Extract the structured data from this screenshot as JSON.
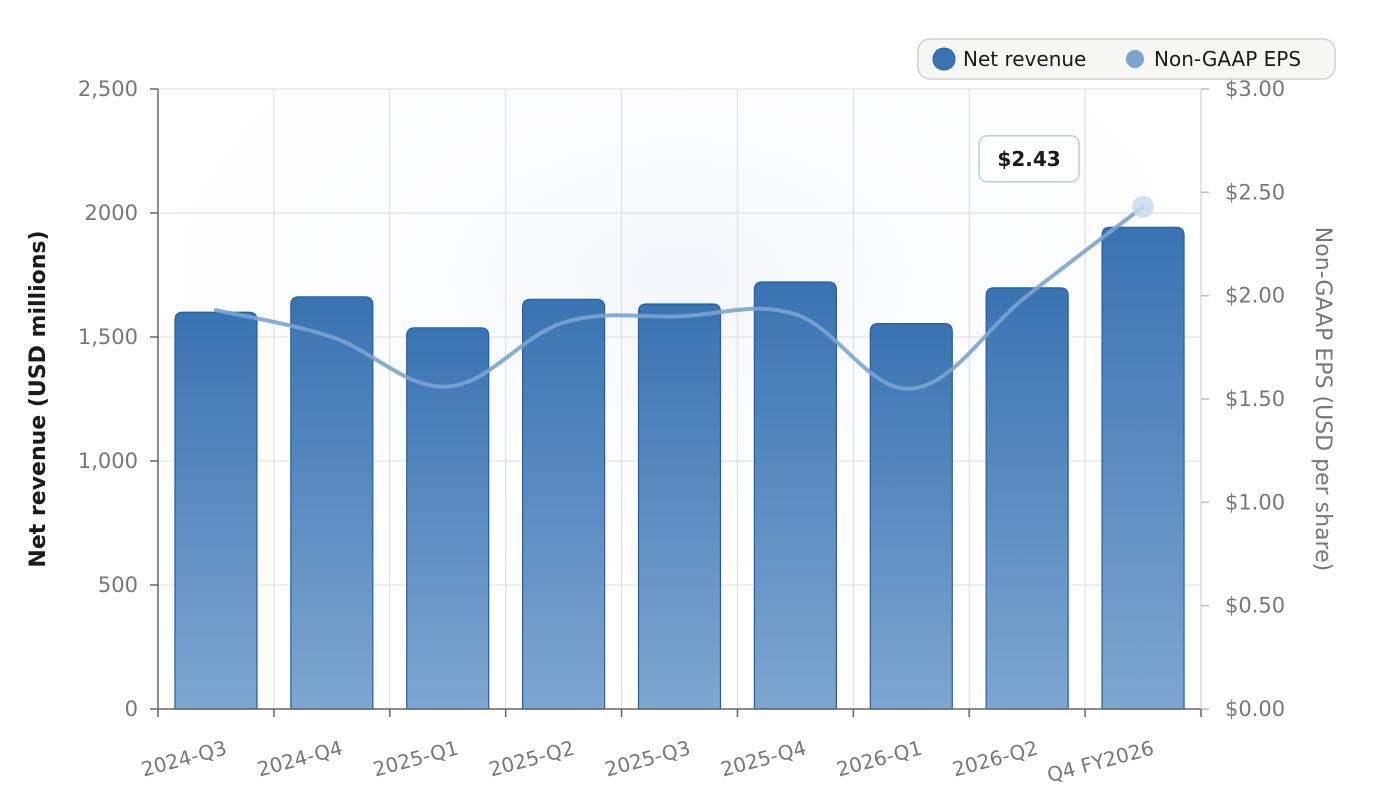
{
  "chart_data": {
    "type": "bar",
    "categories": [
      "2024-Q3",
      "2024-Q4",
      "2025-Q1",
      "2025-Q2",
      "2025-Q3",
      "2025-Q4",
      "2026-Q1",
      "2026-Q2",
      "Q4 FY2026"
    ],
    "series": [
      {
        "name": "Net revenue",
        "type": "bar",
        "axis": "left",
        "values": [
          1600,
          1662,
          1537,
          1652,
          1633,
          1722,
          1554,
          1698,
          1942
        ]
      },
      {
        "name": "Non-GAAP EPS",
        "type": "line",
        "axis": "right",
        "values": [
          1.93,
          1.8,
          1.56,
          1.87,
          1.9,
          1.91,
          1.55,
          2.0,
          2.43
        ]
      }
    ],
    "ylabel": "Net revenue (USD millions)",
    "y2label": "Non-GAAP EPS (USD per share)",
    "ylim": [
      0,
      2500
    ],
    "y2lim": [
      0,
      3
    ],
    "yticks": [
      "0",
      "500",
      "1,000",
      "1,500",
      "2000",
      "2,500"
    ],
    "y2ticks": [
      "$0.00",
      "$0.50",
      "$1.00",
      "$1.50",
      "$2.00",
      "$2.50",
      "$3.00"
    ],
    "annotation": {
      "text": "$2.43",
      "category": "Q4 FY2026",
      "series": "Non-GAAP EPS"
    },
    "grid": true,
    "legend_position": "top-right",
    "colors": {
      "bar": "#3a73b2",
      "bar_light": "#7ea6d0",
      "bar_edge": "#1f5fa8",
      "line": "#7aa4cf",
      "grid": "#dcdcdc",
      "axis": "#666666",
      "tick_text": "#777777"
    }
  }
}
